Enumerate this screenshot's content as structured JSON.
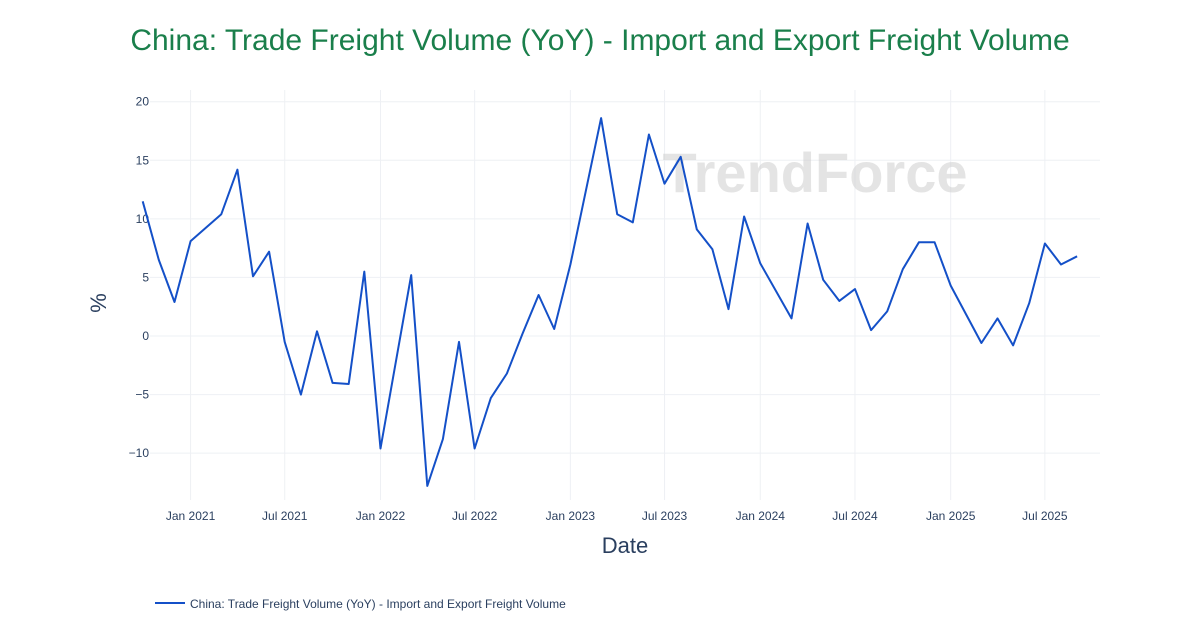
{
  "chart_data": {
    "type": "line",
    "title": "China: Trade Freight Volume (YoY) - Import and Export Freight Volume",
    "xlabel": "Date",
    "ylabel": "%",
    "ylim": [
      -14,
      21
    ],
    "y_ticks": [
      20,
      15,
      10,
      5,
      0,
      -5,
      -10
    ],
    "y_tick_labels": [
      "20",
      "15",
      "10",
      "5",
      "0",
      "−5",
      "−10"
    ],
    "x_ticks": [
      "2021-01",
      "2021-07",
      "2022-01",
      "2022-07",
      "2023-01",
      "2023-07",
      "2024-01",
      "2024-07",
      "2025-01",
      "2025-07"
    ],
    "x_tick_labels": [
      "Jan 2021",
      "Jul 2021",
      "Jan 2022",
      "Jul 2022",
      "Jan 2023",
      "Jul 2023",
      "Jan 2024",
      "Jul 2024",
      "Jan 2025",
      "Jul 2025"
    ],
    "x_range": [
      "2020-10-15",
      "2025-10-15"
    ],
    "grid": true,
    "legend_position": "bottom-left",
    "line_color": "#1450c8",
    "watermark": "TrendForce",
    "series": [
      {
        "name": "China: Trade Freight Volume (YoY) - Import and Export Freight Volume",
        "x": [
          "2020-10",
          "2020-11",
          "2020-12",
          "2021-01",
          "2021-03",
          "2021-04",
          "2021-05",
          "2021-06",
          "2021-07",
          "2021-08",
          "2021-09",
          "2021-10",
          "2021-11",
          "2021-12",
          "2022-01",
          "2022-03",
          "2022-04",
          "2022-05",
          "2022-06",
          "2022-07",
          "2022-08",
          "2022-09",
          "2022-10",
          "2022-11",
          "2022-12",
          "2023-01",
          "2023-03",
          "2023-04",
          "2023-05",
          "2023-06",
          "2023-07",
          "2023-08",
          "2023-09",
          "2023-10",
          "2023-11",
          "2023-12",
          "2024-01",
          "2024-03",
          "2024-04",
          "2024-05",
          "2024-06",
          "2024-07",
          "2024-08",
          "2024-09",
          "2024-10",
          "2024-11",
          "2024-12",
          "2025-01",
          "2025-03",
          "2025-04",
          "2025-05",
          "2025-06",
          "2025-07",
          "2025-08",
          "2025-09"
        ],
        "values": [
          11.5,
          6.5,
          2.9,
          8.1,
          10.4,
          14.2,
          5.1,
          7.2,
          -0.5,
          -5.0,
          0.4,
          -4.0,
          -4.1,
          5.5,
          -9.6,
          5.2,
          -12.8,
          -8.8,
          -0.5,
          -9.6,
          -5.3,
          -3.2,
          0.2,
          3.5,
          0.6,
          6.1,
          18.6,
          10.4,
          9.7,
          17.2,
          13.0,
          15.3,
          9.1,
          7.4,
          2.3,
          10.2,
          6.2,
          1.5,
          9.6,
          4.8,
          3.0,
          4.0,
          0.5,
          2.1,
          5.7,
          8.0,
          8.0,
          4.3,
          -0.6,
          1.5,
          -0.8,
          2.8,
          7.9,
          6.1,
          6.8
        ]
      }
    ]
  }
}
